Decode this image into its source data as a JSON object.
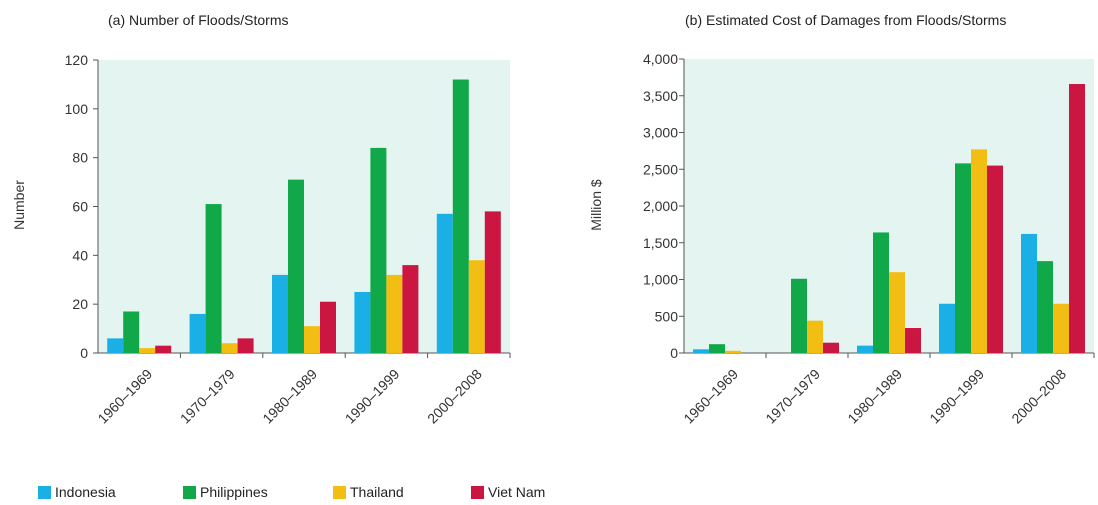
{
  "chart_data": [
    {
      "type": "bar",
      "title": "(a) Number of Floods/Storms",
      "xlabel": "",
      "ylabel": "Number",
      "ylim": [
        0,
        120
      ],
      "yticks": [
        "0",
        "20",
        "40",
        "60",
        "80",
        "100",
        "120"
      ],
      "yticks_values": [
        0,
        20,
        40,
        60,
        80,
        100,
        120
      ],
      "categories": [
        "1960–1969",
        "1970–1979",
        "1980–1989",
        "1990–1999",
        "2000–2008"
      ],
      "series": [
        {
          "name": "Indonesia",
          "values": [
            6,
            16,
            32,
            25,
            57
          ]
        },
        {
          "name": "Philippines",
          "values": [
            17,
            61,
            71,
            84,
            112
          ]
        },
        {
          "name": "Thailand",
          "values": [
            2,
            4,
            11,
            32,
            38
          ]
        },
        {
          "name": "Viet Nam",
          "values": [
            3,
            6,
            21,
            36,
            58
          ]
        }
      ],
      "grid": false
    },
    {
      "type": "bar",
      "title": "(b) Estimated Cost of Damages from Floods/Storms",
      "xlabel": "",
      "ylabel": "Million $",
      "ylim": [
        0,
        4000
      ],
      "yticks": [
        "0",
        "500",
        "1,000",
        "1,500",
        "2,000",
        "2,500",
        "3,000",
        "3,500",
        "4,000"
      ],
      "yticks_values": [
        0,
        500,
        1000,
        1500,
        2000,
        2500,
        3000,
        3500,
        4000
      ],
      "categories": [
        "1960–1969",
        "1970–1979",
        "1980–1989",
        "1990–1999",
        "2000–2008"
      ],
      "series": [
        {
          "name": "Indonesia",
          "values": [
            50,
            0,
            100,
            670,
            1620
          ]
        },
        {
          "name": "Philippines",
          "values": [
            120,
            1010,
            1640,
            2580,
            1250
          ]
        },
        {
          "name": "Thailand",
          "values": [
            30,
            440,
            1100,
            2770,
            670
          ]
        },
        {
          "name": "Viet Nam",
          "values": [
            0,
            140,
            340,
            2550,
            3660
          ]
        }
      ],
      "grid": false
    }
  ],
  "colors": {
    "Indonesia": "#1ab0e6",
    "Philippines": "#11a84a",
    "Thailand": "#f2be14",
    "Viet Nam": "#cc1642",
    "plot_bg": "#e4f4f1"
  },
  "legend": {
    "placement": "bottom",
    "items": [
      {
        "label": "Indonesia",
        "color": "#1ab0e6"
      },
      {
        "label": "Philippines",
        "color": "#11a84a"
      },
      {
        "label": "Thailand",
        "color": "#f2be14"
      },
      {
        "label": "Viet Nam",
        "color": "#cc1642"
      }
    ]
  }
}
